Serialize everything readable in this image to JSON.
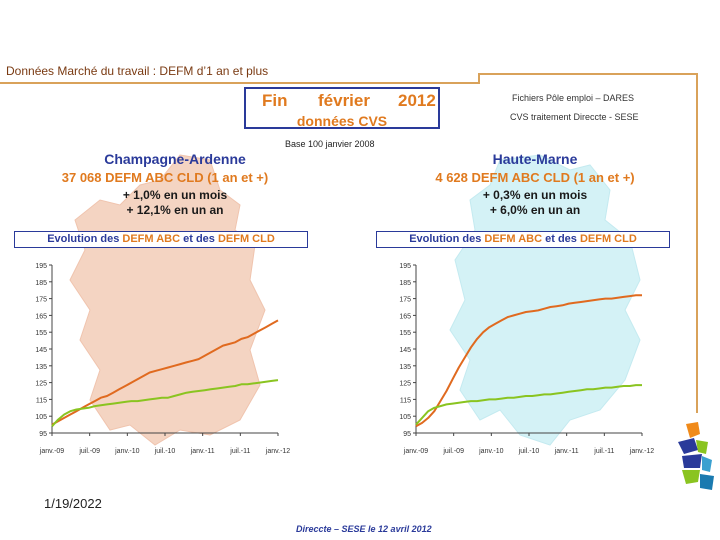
{
  "header": {
    "title": "Données Marché du travail : DEFM d’1 an et plus"
  },
  "title_box": {
    "fin": "Fin",
    "month": "février",
    "year": "2012",
    "subtitle": "données CVS"
  },
  "sources": {
    "line1": "Fichiers Pôle emploi – DARES",
    "line2": "CVS traitement Direccte - SESE"
  },
  "base_note": "Base 100 janvier 2008",
  "regions": [
    {
      "name": "Champagne-Ardenne",
      "count": "37 068 DEFM ABC CLD (1 an et +)",
      "month_change": "+ 1,0% en un mois",
      "year_change": "+ 12,1% en un an"
    },
    {
      "name": "Haute-Marne",
      "count": "4 628 DEFM ABC CLD (1 an et +)",
      "month_change": "+ 0,3% en un mois",
      "year_change": "+ 6,0% en un an"
    }
  ],
  "banner": {
    "prefix": "Evolution des ",
    "abc": "DEFM ABC",
    "middle": " et des ",
    "cld": "DEFM CLD"
  },
  "colors": {
    "abc": "#8ac420",
    "cld": "#e06a1f",
    "map_left": "#f4d4c2",
    "map_right": "#d4f2f6",
    "title": "#2a3a9a"
  },
  "chart_data": [
    {
      "type": "line",
      "region": "Champagne-Ardenne",
      "y_ticks": [
        "195",
        "185",
        "175",
        "165",
        "155",
        "145",
        "135",
        "125",
        "115",
        "105",
        "95"
      ],
      "ylim": [
        95,
        195
      ],
      "x_ticks": [
        "janv.-09",
        "juil.-09",
        "janv.-10",
        "juil.-10",
        "janv.-11",
        "juil.-11",
        "janv.-12"
      ],
      "x": [
        0,
        1,
        2,
        3,
        4,
        5,
        6,
        7,
        8,
        9,
        10,
        11,
        12,
        13,
        14,
        15,
        16,
        17,
        18,
        19,
        20,
        21,
        22,
        23,
        24,
        25,
        26,
        27,
        28,
        29,
        30,
        31,
        32,
        33,
        34,
        35,
        36,
        37
      ],
      "series": [
        {
          "key": "cld",
          "values": [
            100,
            102,
            104,
            106,
            108,
            110,
            112,
            114,
            116,
            117,
            119,
            121,
            123,
            125,
            127,
            129,
            131,
            132,
            133,
            134,
            135,
            136,
            137,
            138,
            139,
            141,
            143,
            145,
            147,
            148,
            149,
            151,
            152,
            154,
            156,
            158,
            160,
            162
          ]
        },
        {
          "key": "abc",
          "values": [
            99,
            103,
            106,
            108,
            109,
            109.5,
            110,
            111,
            111.5,
            112,
            112.5,
            113,
            113.5,
            114,
            114,
            114.5,
            115,
            115.5,
            116,
            116,
            117,
            118,
            119,
            119.5,
            120,
            120.5,
            121,
            121.5,
            122,
            122.5,
            123,
            124,
            124,
            124.5,
            125,
            125.5,
            126,
            126.5
          ]
        }
      ]
    },
    {
      "type": "line",
      "region": "Haute-Marne",
      "y_ticks": [
        "195",
        "185",
        "175",
        "165",
        "155",
        "145",
        "135",
        "125",
        "115",
        "105",
        "95"
      ],
      "ylim": [
        95,
        195
      ],
      "x_ticks": [
        "janv.-09",
        "juil.-09",
        "janv.-10",
        "juil.-10",
        "janv.-11",
        "juil.-11",
        "janv.-12"
      ],
      "x": [
        0,
        1,
        2,
        3,
        4,
        5,
        6,
        7,
        8,
        9,
        10,
        11,
        12,
        13,
        14,
        15,
        16,
        17,
        18,
        19,
        20,
        21,
        22,
        23,
        24,
        25,
        26,
        27,
        28,
        29,
        30,
        31,
        32,
        33,
        34,
        35,
        36,
        37
      ],
      "series": [
        {
          "key": "cld",
          "values": [
            99,
            101,
            104,
            108,
            114,
            120,
            127,
            134,
            140,
            146,
            151,
            155,
            158,
            160,
            162,
            164,
            165,
            166,
            167,
            167.5,
            168,
            169,
            170,
            170.5,
            171,
            172,
            172.5,
            173,
            173.5,
            174,
            174.5,
            175,
            175,
            175.5,
            176,
            176.5,
            177,
            177
          ]
        },
        {
          "key": "abc",
          "values": [
            100,
            104,
            108,
            110,
            111,
            112,
            112.5,
            113,
            113.5,
            114,
            114,
            114.5,
            115,
            115,
            115.5,
            116,
            116,
            116.5,
            117,
            117,
            117.5,
            118,
            118,
            118.5,
            119,
            119.5,
            120,
            120.5,
            121,
            121,
            121.5,
            122,
            122,
            122.5,
            123,
            123,
            123.5,
            123.5
          ]
        }
      ]
    }
  ],
  "date_stamp": "1/19/2022",
  "footer": "Direccte – SESE le 12 avril 2012"
}
